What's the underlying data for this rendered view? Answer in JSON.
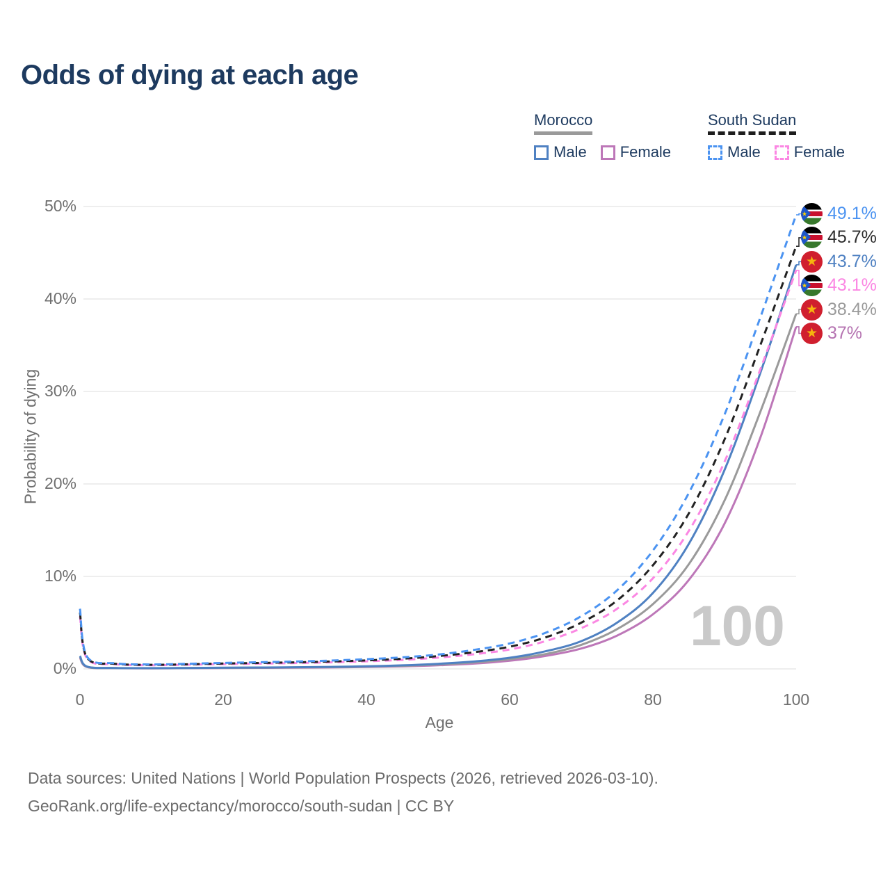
{
  "title": "Odds of dying at each age",
  "watermark": "100",
  "legend": {
    "groups": [
      {
        "label": "Morocco",
        "line": "solid",
        "items": [
          {
            "label": "Male",
            "color": "#4f81c2"
          },
          {
            "label": "Female",
            "color": "#bd77b8"
          }
        ]
      },
      {
        "label": "South Sudan",
        "line": "dashed",
        "items": [
          {
            "label": "Male",
            "color": "#4b93f1"
          },
          {
            "label": "Female",
            "color": "#fb87e3"
          }
        ]
      }
    ]
  },
  "axes": {
    "y_title": "Probability of dying",
    "x_title": "Age",
    "y_ticks": [
      "0%",
      "10%",
      "20%",
      "30%",
      "40%",
      "50%"
    ],
    "x_ticks": [
      "0",
      "20",
      "40",
      "60",
      "80",
      "100"
    ]
  },
  "end_labels": [
    {
      "text": "49.1%",
      "value": 49.1,
      "color": "#4b93f1",
      "flag": "south-sudan",
      "series": "South Sudan Male"
    },
    {
      "text": "45.7%",
      "value": 45.7,
      "color": "#2e2e2e",
      "flag": "south-sudan",
      "series": "South Sudan Both sexes"
    },
    {
      "text": "43.7%",
      "value": 43.7,
      "color": "#4f81c2",
      "flag": "morocco",
      "series": "Morocco Male"
    },
    {
      "text": "43.1%",
      "value": 43.1,
      "color": "#fb87e3",
      "flag": "south-sudan",
      "series": "South Sudan Female"
    },
    {
      "text": "38.4%",
      "value": 38.4,
      "color": "#9a9a9a",
      "flag": "morocco",
      "series": "Morocco Both sexes"
    },
    {
      "text": "37%",
      "value": 37.0,
      "color": "#b573b1",
      "flag": "morocco",
      "series": "Morocco Female"
    }
  ],
  "footer": {
    "line1": "Data sources: United Nations | World Population Prospects (2026, retrieved 2026-03-10).",
    "line2": "GeoRank.org/life-expectancy/morocco/south-sudan | CC BY"
  },
  "chart_data": {
    "type": "line",
    "title": "Odds of dying at each age",
    "xlabel": "Age",
    "ylabel": "Probability of dying",
    "xlim": [
      0,
      100
    ],
    "ylim": [
      0,
      50
    ],
    "y_unit": "%",
    "grid": "horizontal",
    "legend_position": "top-right",
    "x": [
      0,
      1,
      5,
      10,
      15,
      20,
      25,
      30,
      35,
      40,
      45,
      50,
      55,
      60,
      65,
      70,
      75,
      80,
      85,
      90,
      95,
      100
    ],
    "series": [
      {
        "name": "Morocco Female",
        "country": "Morocco",
        "sex": "Female",
        "line": "solid",
        "color": "#bd77b8",
        "end_label": "37%",
        "values": [
          1.2,
          0.2,
          0.08,
          0.06,
          0.08,
          0.09,
          0.11,
          0.13,
          0.16,
          0.2,
          0.27,
          0.39,
          0.57,
          0.88,
          1.4,
          2.2,
          3.6,
          5.9,
          9.6,
          15.7,
          25.0,
          37.0
        ]
      },
      {
        "name": "Morocco Both sexes",
        "country": "Morocco",
        "sex": "Both",
        "line": "solid",
        "color": "#9a9a9a",
        "end_label": "38.4%",
        "values": [
          1.3,
          0.22,
          0.09,
          0.07,
          0.09,
          0.11,
          0.13,
          0.16,
          0.19,
          0.24,
          0.33,
          0.47,
          0.69,
          1.05,
          1.6,
          2.6,
          4.3,
          7.0,
          11.3,
          18.2,
          27.8,
          38.4
        ]
      },
      {
        "name": "Morocco Male",
        "country": "Morocco",
        "sex": "Male",
        "line": "solid",
        "color": "#4f81c2",
        "end_label": "43.7%",
        "values": [
          1.4,
          0.25,
          0.1,
          0.08,
          0.1,
          0.13,
          0.15,
          0.18,
          0.22,
          0.28,
          0.38,
          0.55,
          0.8,
          1.2,
          1.9,
          3.0,
          5.0,
          8.2,
          13.5,
          21.5,
          32.0,
          43.7
        ]
      },
      {
        "name": "South Sudan Female",
        "country": "South Sudan",
        "sex": "Female",
        "line": "dashed",
        "color": "#fb87e3",
        "end_label": "43.1%",
        "values": [
          5.7,
          1.1,
          0.5,
          0.4,
          0.45,
          0.52,
          0.57,
          0.63,
          0.71,
          0.82,
          0.97,
          1.22,
          1.58,
          2.1,
          3.0,
          4.4,
          6.5,
          9.8,
          14.9,
          22.4,
          32.4,
          43.1
        ]
      },
      {
        "name": "South Sudan Both sexes",
        "country": "South Sudan",
        "sex": "Both",
        "line": "dashed",
        "color": "#222222",
        "end_label": "45.7%",
        "values": [
          6.1,
          1.2,
          0.55,
          0.44,
          0.5,
          0.58,
          0.64,
          0.71,
          0.8,
          0.92,
          1.1,
          1.38,
          1.8,
          2.4,
          3.4,
          5.0,
          7.4,
          11.2,
          16.8,
          24.8,
          35.0,
          45.7
        ]
      },
      {
        "name": "South Sudan Male",
        "country": "South Sudan",
        "sex": "Male",
        "line": "dashed",
        "color": "#4b93f1",
        "end_label": "49.1%",
        "values": [
          6.5,
          1.3,
          0.6,
          0.48,
          0.55,
          0.65,
          0.72,
          0.8,
          0.9,
          1.05,
          1.25,
          1.55,
          2.05,
          2.75,
          3.9,
          5.7,
          8.5,
          12.8,
          19.0,
          27.5,
          38.0,
          49.1
        ]
      }
    ]
  }
}
